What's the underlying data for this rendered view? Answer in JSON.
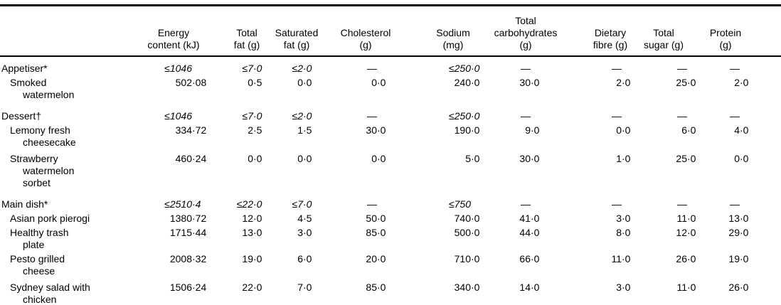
{
  "table": {
    "columns": [
      {
        "label": ""
      },
      {
        "label": [
          "Energy",
          "content (kJ)"
        ]
      },
      {
        "label": [
          "Total",
          "fat (g)"
        ]
      },
      {
        "label": [
          "Saturated",
          "fat (g)"
        ]
      },
      {
        "label": [
          "Cholesterol",
          "(g)"
        ]
      },
      {
        "label": [
          "Sodium",
          "(mg)"
        ]
      },
      {
        "label": [
          "Total",
          "carbohydrates",
          "(g)"
        ]
      },
      {
        "label": [
          "Dietary",
          "fibre (g)"
        ]
      },
      {
        "label": [
          "Total",
          "sugar (g)"
        ]
      },
      {
        "label": [
          "Protein",
          "(g)"
        ]
      }
    ],
    "rows": [
      {
        "type": "section",
        "label": "Appetiser*",
        "values": [
          "≤1046",
          "≤7·0",
          "≤2·0",
          "—",
          "≤250·0",
          "—",
          "—",
          "—",
          "—"
        ]
      },
      {
        "type": "item",
        "label": "Smoked watermelon",
        "values": [
          "502·08",
          "0·5",
          "0·0",
          "0·0",
          "240·0",
          "30·0",
          "2·0",
          "25·0",
          "2·0"
        ]
      },
      {
        "type": "section",
        "label": "Dessert†",
        "values": [
          "≤1046",
          "≤7·0",
          "≤2·0",
          "—",
          "≤250·0",
          "—",
          "—",
          "—",
          "—"
        ]
      },
      {
        "type": "item",
        "label": "Lemony fresh cheesecake",
        "values": [
          "334·72",
          "2·5",
          "1·5",
          "30·0",
          "190·0",
          "9·0",
          "0·0",
          "6·0",
          "4·0"
        ]
      },
      {
        "type": "item",
        "label": "Strawberry watermelon sorbet",
        "values": [
          "460·24",
          "0·0",
          "0·0",
          "0·0",
          "5·0",
          "30·0",
          "1·0",
          "25·0",
          "0·0"
        ]
      },
      {
        "type": "section",
        "label": "Main dish*",
        "values": [
          "≤2510·4",
          "≤22·0",
          "≤7·0",
          "—",
          "≤750",
          "—",
          "—",
          "—",
          "—"
        ]
      },
      {
        "type": "item",
        "label": "Asian pork pierogi",
        "values": [
          "1380·72",
          "12·0",
          "4·5",
          "50·0",
          "740·0",
          "41·0",
          "3·0",
          "11·0",
          "13·0"
        ]
      },
      {
        "type": "item",
        "label": "Healthy trash plate",
        "values": [
          "1715·44",
          "13·0",
          "3·0",
          "85·0",
          "500·0",
          "44·0",
          "8·0",
          "12·0",
          "29·0"
        ]
      },
      {
        "type": "item",
        "label": "Pesto grilled cheese",
        "values": [
          "2008·32",
          "19·0",
          "6·0",
          "20·0",
          "710·0",
          "66·0",
          "11·0",
          "26·0",
          "19·0"
        ]
      },
      {
        "type": "item",
        "label": "Sydney salad with chicken",
        "values": [
          "1506·24",
          "22·0",
          "7·0",
          "85·0",
          "340·0",
          "14·0",
          "3·0",
          "11·0",
          "26·0"
        ]
      }
    ]
  }
}
